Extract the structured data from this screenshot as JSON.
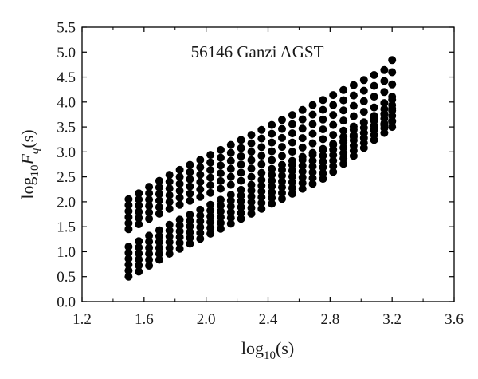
{
  "chart_data": {
    "type": "scatter",
    "title": "56146 Ganzi AGST",
    "xlabel": "log10(s)",
    "ylabel": "log10Fq(s)",
    "xlim": [
      1.2,
      3.6
    ],
    "ylim": [
      0.0,
      5.5
    ],
    "xticks": [
      "1.2",
      "1.6",
      "2.0",
      "2.4",
      "2.8",
      "3.2",
      "3.6"
    ],
    "yticks": [
      "0.0",
      "0.5",
      "1.0",
      "1.5",
      "2.0",
      "2.5",
      "3.0",
      "3.5",
      "4.0",
      "4.5",
      "5.0",
      "5.5"
    ],
    "grid": false,
    "marker": "filled-circle",
    "color": "#000000",
    "x": [
      1.5,
      1.566,
      1.632,
      1.698,
      1.764,
      1.83,
      1.896,
      1.962,
      2.028,
      2.094,
      2.16,
      2.226,
      2.292,
      2.358,
      2.424,
      2.49,
      2.556,
      2.622,
      2.688,
      2.754,
      2.82,
      2.886,
      2.952,
      3.018,
      3.084,
      3.15,
      3.2
    ],
    "series": [
      {
        "group": "upper band",
        "points_per_column": 6,
        "bottom": [
          1.45,
          1.55,
          1.66,
          1.76,
          1.86,
          1.94,
          2.02,
          2.1,
          2.18,
          2.26,
          2.34,
          2.42,
          2.5,
          2.58,
          2.66,
          2.74,
          2.82,
          2.9,
          2.98,
          3.06,
          3.14,
          3.22,
          3.3,
          3.38,
          3.46,
          3.54,
          3.62
        ],
        "top": [
          2.05,
          2.17,
          2.3,
          2.42,
          2.54,
          2.64,
          2.74,
          2.84,
          2.94,
          3.04,
          3.14,
          3.24,
          3.34,
          3.44,
          3.54,
          3.64,
          3.74,
          3.84,
          3.94,
          4.04,
          4.14,
          4.24,
          4.34,
          4.44,
          4.54,
          4.64,
          4.84
        ]
      },
      {
        "group": "lower band",
        "points_per_column": 6,
        "bottom": [
          0.5,
          0.6,
          0.72,
          0.84,
          0.96,
          1.06,
          1.16,
          1.26,
          1.36,
          1.46,
          1.56,
          1.66,
          1.76,
          1.86,
          1.96,
          2.06,
          2.16,
          2.26,
          2.36,
          2.46,
          2.6,
          2.76,
          2.92,
          3.08,
          3.24,
          3.38,
          3.5
        ],
        "top": [
          1.1,
          1.21,
          1.32,
          1.43,
          1.54,
          1.64,
          1.74,
          1.84,
          1.94,
          2.04,
          2.14,
          2.24,
          2.34,
          2.44,
          2.54,
          2.64,
          2.74,
          2.84,
          2.94,
          3.04,
          3.16,
          3.3,
          3.44,
          3.58,
          3.72,
          3.86,
          4.05
        ]
      }
    ]
  }
}
